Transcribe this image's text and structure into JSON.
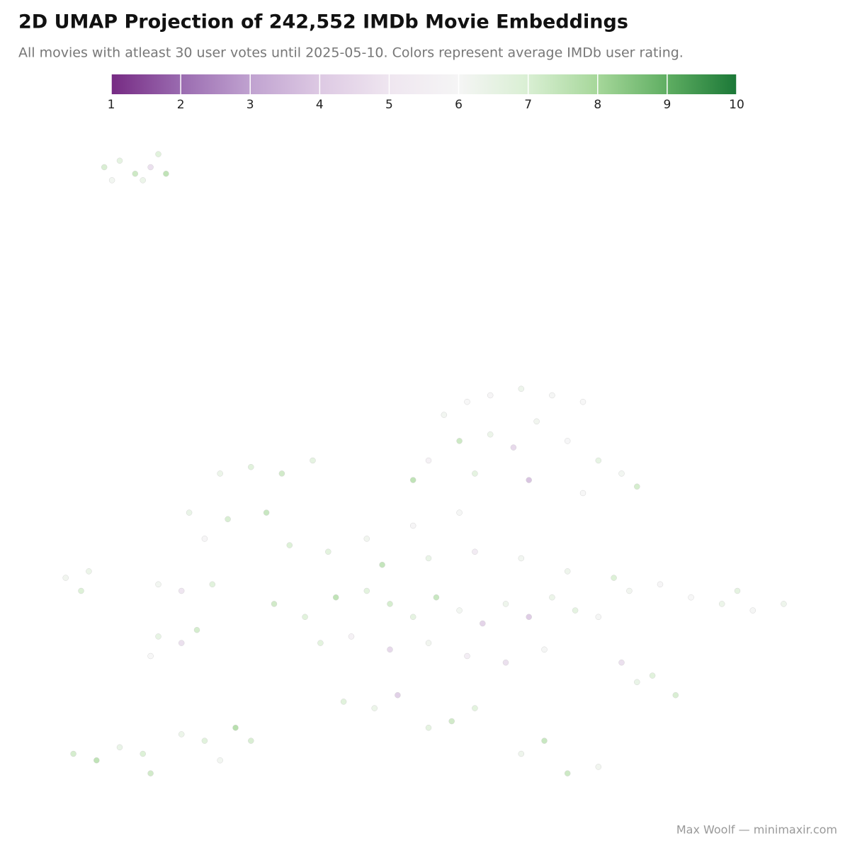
{
  "chart_data": {
    "type": "scatter",
    "title": "2D UMAP Projection of 242,552 IMDb Movie Embeddings",
    "subtitle": "All movies with atleast 30 user votes until 2025-05-10. Colors represent average IMDb user rating.",
    "caption": "Max Woolf — minimaxir.com",
    "clim": [
      1,
      10
    ],
    "cticks": [
      1,
      2,
      3,
      4,
      5,
      6,
      7,
      8,
      9,
      10
    ],
    "colorscale": [
      "#762a83",
      "#9a6bb0",
      "#c0a2d0",
      "#ddc9e3",
      "#efe6f0",
      "#f5f5f5",
      "#d9efd3",
      "#a6d79a",
      "#5fae62",
      "#1b7837"
    ],
    "xlim": [
      0,
      100
    ],
    "ylim": [
      0,
      100
    ],
    "x": [
      8,
      10,
      12,
      14,
      15,
      13,
      16,
      9,
      52,
      55,
      58,
      62,
      66,
      70,
      54,
      58,
      61,
      64,
      68,
      72,
      75,
      77,
      50,
      56,
      63,
      70,
      48,
      23,
      27,
      31,
      35,
      19,
      24,
      21,
      29,
      32,
      37,
      3,
      6,
      5,
      15,
      18,
      22,
      15,
      18,
      20,
      14,
      30,
      34,
      38,
      42,
      45,
      48,
      51,
      54,
      57,
      60,
      63,
      66,
      69,
      72,
      40,
      45,
      50,
      55,
      60,
      65,
      44,
      50,
      56,
      62,
      68,
      74,
      36,
      42,
      48,
      54,
      76,
      80,
      84,
      88,
      92,
      96,
      90,
      75,
      79,
      82,
      77,
      39,
      43,
      46,
      50,
      53,
      56,
      62,
      65,
      68,
      72,
      4,
      7,
      10,
      13,
      14,
      18,
      21,
      25,
      27,
      23
    ],
    "y": [
      95,
      96,
      94,
      95,
      97,
      93,
      94,
      93,
      57,
      59,
      60,
      61,
      60,
      59,
      53,
      54,
      52,
      56,
      53,
      50,
      48,
      46,
      50,
      48,
      47,
      45,
      47,
      48,
      49,
      48,
      50,
      42,
      41,
      38,
      42,
      37,
      36,
      32,
      33,
      30,
      31,
      30,
      31,
      23,
      22,
      24,
      20,
      28,
      26,
      29,
      30,
      28,
      26,
      29,
      27,
      25,
      28,
      26,
      29,
      27,
      26,
      23,
      21,
      22,
      20,
      19,
      21,
      34,
      35,
      36,
      35,
      33,
      32,
      22,
      38,
      40,
      42,
      30,
      31,
      29,
      28,
      27,
      28,
      30,
      19,
      17,
      14,
      16,
      13,
      12,
      14,
      9,
      10,
      12,
      5,
      7,
      2,
      3,
      5,
      4,
      6,
      5,
      2,
      8,
      7,
      9,
      7,
      4
    ],
    "values": [
      7.2,
      6.8,
      7.5,
      4.5,
      7.0,
      6.5,
      7.8,
      6.2,
      6.2,
      6.0,
      5.8,
      6.4,
      6.1,
      6.0,
      7.5,
      6.5,
      4.2,
      6.3,
      5.9,
      6.7,
      6.2,
      7.3,
      5.5,
      6.8,
      3.5,
      6.0,
      7.8,
      6.5,
      7.0,
      7.4,
      6.8,
      6.6,
      7.2,
      5.8,
      7.6,
      7.1,
      6.9,
      6.3,
      6.5,
      7.1,
      6.2,
      4.8,
      7.0,
      6.7,
      4.5,
      7.3,
      6.0,
      7.4,
      7.0,
      7.8,
      6.9,
      7.3,
      6.8,
      7.6,
      6.2,
      4.0,
      6.4,
      3.8,
      6.5,
      6.8,
      6.1,
      5.5,
      4.2,
      6.3,
      5.2,
      4.5,
      6.1,
      7.7,
      6.6,
      5.0,
      6.2,
      6.4,
      7.1,
      6.9,
      6.3,
      5.8,
      6.1,
      6.3,
      5.8,
      6.0,
      6.5,
      6.1,
      6.4,
      6.8,
      4.5,
      7.0,
      7.2,
      6.6,
      7.0,
      6.5,
      3.9,
      6.8,
      7.4,
      6.9,
      6.4,
      7.6,
      7.5,
      6.3,
      7.3,
      7.8,
      6.6,
      7.1,
      7.4,
      6.5,
      7.0,
      8.0,
      7.2,
      6.2
    ]
  }
}
